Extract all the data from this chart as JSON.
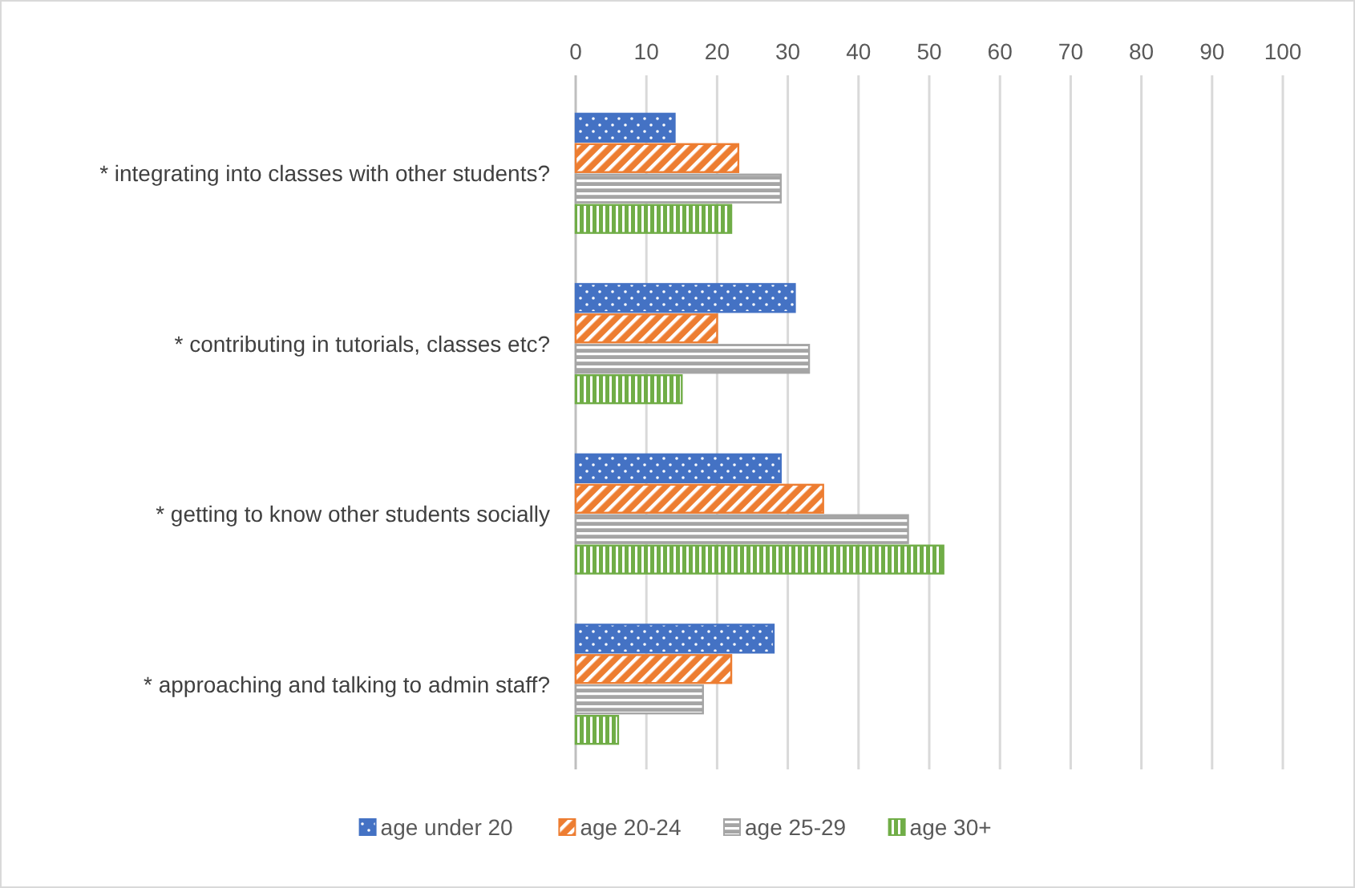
{
  "chart_data": {
    "type": "bar",
    "orientation": "horizontal",
    "categories": [
      "* integrating into classes with other students?",
      "* contributing in tutorials, classes etc?",
      "* getting to know other students socially",
      "* approaching and talking to admin staff?"
    ],
    "series": [
      {
        "name": "age under 20",
        "color": "#4472c4",
        "values": [
          14,
          31,
          29,
          28
        ]
      },
      {
        "name": "age 20-24",
        "color": "#ed7d31",
        "values": [
          23,
          20,
          35,
          22
        ]
      },
      {
        "name": "age 25-29",
        "color": "#a5a5a5",
        "values": [
          29,
          33,
          47,
          18
        ]
      },
      {
        "name": "age 30+",
        "color": "#70ad47",
        "values": [
          22,
          15,
          52,
          6
        ]
      }
    ],
    "xlim": [
      0,
      100
    ],
    "xticks": [
      0,
      10,
      20,
      30,
      40,
      50,
      60,
      70,
      80,
      90,
      100
    ],
    "grid": "x",
    "legend": "bottom"
  }
}
